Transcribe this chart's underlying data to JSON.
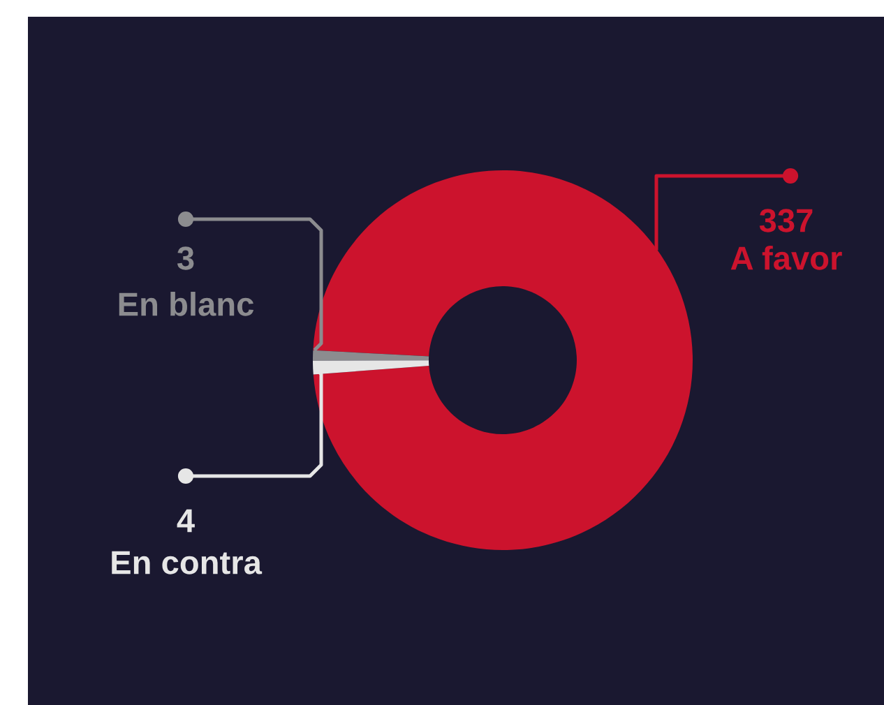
{
  "chart_data": {
    "type": "donut",
    "categories": [
      "A favor",
      "En blanc",
      "En contra"
    ],
    "values": [
      337,
      3,
      4
    ],
    "colors": [
      "#cc132d",
      "#8c8c8f",
      "#e6e6e6"
    ],
    "value_labels": [
      "337",
      "3",
      "4"
    ]
  }
}
